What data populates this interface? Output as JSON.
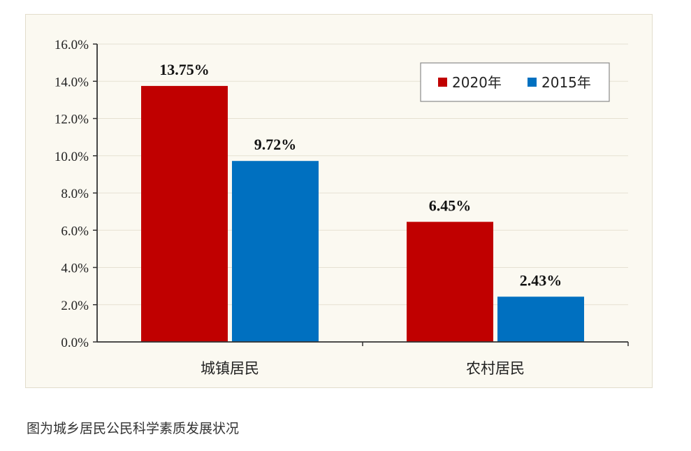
{
  "colors": {
    "s2020": "#c00000",
    "s2015": "#0070c0",
    "grid": "#e6e1d2",
    "axis": "#333333"
  },
  "chart_data": {
    "type": "bar",
    "title": "",
    "xlabel": "",
    "ylabel": "",
    "categories": [
      "城镇居民",
      "农村居民"
    ],
    "series": [
      {
        "name": "2020年",
        "values": [
          13.75,
          6.45
        ],
        "labels": [
          "13.75%",
          "6.45%"
        ]
      },
      {
        "name": "2015年",
        "values": [
          9.72,
          2.43
        ],
        "labels": [
          "9.72%",
          "2.43%"
        ]
      }
    ],
    "ylim": [
      0,
      16
    ],
    "yticks": [
      0,
      2,
      4,
      6,
      8,
      10,
      12,
      14,
      16
    ],
    "ytick_labels": [
      "0.0%",
      "2.0%",
      "4.0%",
      "6.0%",
      "8.0%",
      "10.0%",
      "12.0%",
      "14.0%",
      "16.0%"
    ],
    "grid": true,
    "legend_position": "top-right"
  },
  "caption": "图为城乡居民公民科学素质发展状况"
}
